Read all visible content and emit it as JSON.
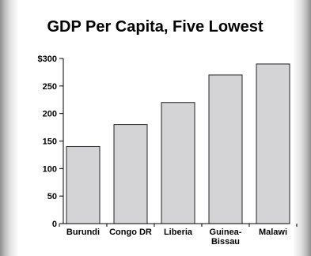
{
  "chart_data": {
    "type": "bar",
    "title": "GDP Per Capita, Five Lowest",
    "xlabel": "",
    "ylabel": "",
    "categories": [
      [
        "Burundi"
      ],
      [
        "Congo DR"
      ],
      [
        "Liberia"
      ],
      [
        "Guinea-",
        "Bissau"
      ],
      [
        "Malawi"
      ]
    ],
    "values": [
      140,
      180,
      220,
      270,
      290
    ],
    "ylim": [
      0,
      300
    ],
    "yticks": [
      "0",
      "50",
      "100",
      "150",
      "200",
      "250",
      "$300"
    ],
    "grid": false,
    "colors": {
      "bar_fill": "#d4d4d6",
      "bar_stroke": "#222222",
      "axis": "#000000"
    }
  }
}
